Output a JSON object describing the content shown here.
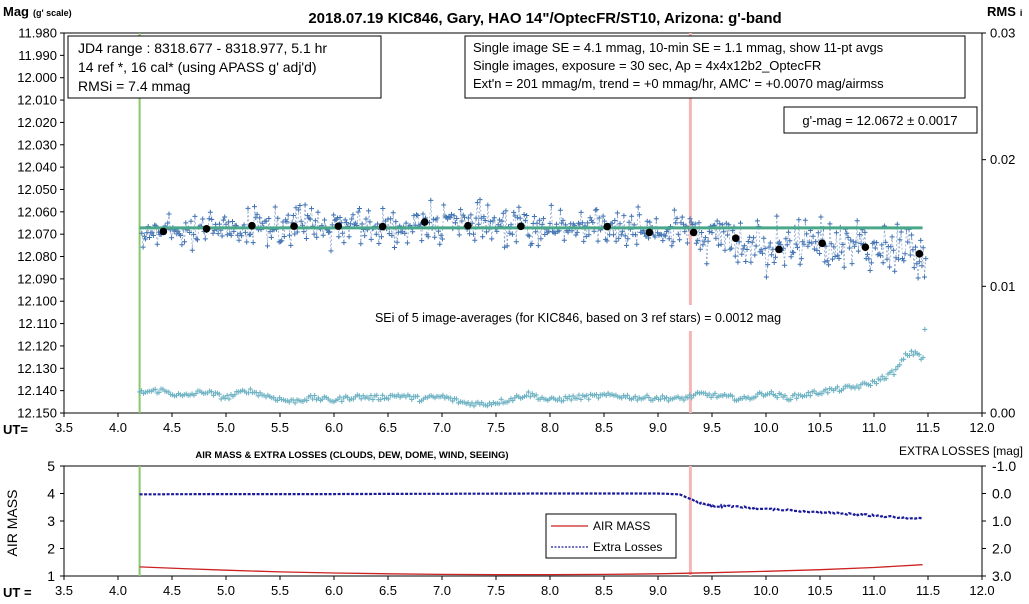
{
  "chart_data": [
    {
      "type": "scatter",
      "title": "2018.07.19  KIC846,  Gary, HAO 14\"/OptecFR/ST10,  Arizona:  g'-band",
      "ylabel_left_main": "Mag",
      "ylabel_left_sub": "(g' scale)",
      "ylabel_right_main": "RMS",
      "ylabel_right_sub": "i",
      "xlabel": "UT=",
      "ylim": [
        11.98,
        12.15
      ],
      "y_inverted": true,
      "xlim": [
        3.5,
        12.0
      ],
      "y2lim": [
        0.0,
        0.03
      ],
      "y_ticks": [
        "11.980",
        "11.990",
        "12.000",
        "12.010",
        "12.020",
        "12.030",
        "12.040",
        "12.050",
        "12.060",
        "12.070",
        "12.080",
        "12.090",
        "12.100",
        "12.110",
        "12.120",
        "12.130",
        "12.140",
        "12.150"
      ],
      "y2_ticks": [
        "0.00",
        "0.01",
        "0.02",
        "0.03"
      ],
      "x_ticks": [
        "3.5",
        "4.0",
        "4.5",
        "5.0",
        "5.5",
        "6.0",
        "6.5",
        "7.0",
        "7.5",
        "8.0",
        "8.5",
        "9.0",
        "9.5",
        "10.0",
        "10.5",
        "11.0",
        "11.5",
        "12.0"
      ],
      "info_left": [
        "JD4 range : 8318.677 - 8318.977,  5.1  hr",
        "14 ref *, 16 cal* (using APASS g' adj'd)",
        "RMSi = 7.4 mmag"
      ],
      "info_right": [
        "Single image SE = 4.1 mmag, 10-min SE = 1.1 mmag, show  11-pt avgs",
        "Single images, exposure = 30 sec, Ap = 4x4x12b2_OptecFR",
        "Ext'n = 201 mmag/m, trend =  +0 mmag/hr, AMC' = +0.0070 mag/airmss"
      ],
      "gmag_box": "g'-mag = 12.0672 ± 0.0017",
      "sei_note": "SEi of 5 image-averages (for KIC846, based on 3 ref stars) = 0.0012  mag",
      "fit_level": 12.0672,
      "green_marker_x": 4.2,
      "red_marker_x": 9.3,
      "avg_points": {
        "x": [
          4.42,
          4.82,
          5.24,
          5.63,
          6.04,
          6.45,
          6.84,
          7.24,
          7.73,
          8.53,
          8.92,
          9.33,
          9.72,
          10.12,
          10.52,
          10.92,
          11.42
        ],
        "y": [
          12.0688,
          12.0676,
          12.0662,
          12.0664,
          12.0664,
          12.0666,
          12.0646,
          12.0662,
          12.0665,
          12.0666,
          12.0692,
          12.0692,
          12.0718,
          12.0768,
          12.0741,
          12.0758,
          12.0788
        ]
      },
      "rms_trace": {
        "x": [
          4.2,
          4.4,
          4.6,
          4.8,
          5.0,
          5.2,
          5.4,
          5.6,
          5.8,
          6.0,
          6.2,
          6.4,
          6.6,
          6.8,
          7.0,
          7.2,
          7.4,
          7.6,
          7.8,
          8.0,
          8.2,
          8.4,
          8.6,
          8.8,
          9.0,
          9.2,
          9.4,
          9.6,
          9.8,
          10.0,
          10.2,
          10.4,
          10.6,
          10.8,
          11.0,
          11.2,
          11.3,
          11.4,
          11.45
        ],
        "y": [
          0.0016,
          0.0018,
          0.0013,
          0.0017,
          0.0012,
          0.0018,
          0.0013,
          0.0009,
          0.0012,
          0.001,
          0.0013,
          0.0012,
          0.0014,
          0.0011,
          0.0013,
          0.0008,
          0.0007,
          0.001,
          0.0015,
          0.001,
          0.0012,
          0.0013,
          0.0014,
          0.0012,
          0.0012,
          0.0011,
          0.0015,
          0.0013,
          0.0011,
          0.0016,
          0.0012,
          0.0015,
          0.0018,
          0.002,
          0.0024,
          0.0033,
          0.0046,
          0.0048,
          0.0042
        ]
      },
      "rms_outlier": {
        "x": 11.47,
        "y": 0.0066
      }
    },
    {
      "type": "line",
      "title": "AIR MASS & EXTRA LOSSES (CLOUDS, DEW, DOME, WIND, SEEING)",
      "ylabel": "AIR MASS",
      "y2label": "EXTRA LOSSES [mag]",
      "xlabel": "UT =",
      "ylim": [
        1,
        5
      ],
      "y2lim": [
        -1.0,
        3.0
      ],
      "y2_inverted": true,
      "xlim": [
        3.5,
        12.0
      ],
      "y_ticks": [
        "1",
        "2",
        "3",
        "4",
        "5"
      ],
      "y2_ticks": [
        "-1.0",
        "0.0",
        "1.0",
        "2.0",
        "3.0"
      ],
      "x_ticks": [
        "3.5",
        "4.0",
        "4.5",
        "5.0",
        "5.5",
        "6.0",
        "6.5",
        "7.0",
        "7.5",
        "8.0",
        "8.5",
        "9.0",
        "9.5",
        "10.0",
        "10.5",
        "11.0",
        "11.5",
        "12.0"
      ],
      "green_marker_x": 4.2,
      "red_marker_x": 9.3,
      "legend": [
        "AIR MASS",
        "Extra Losses"
      ],
      "legend_position": "lower-middle",
      "series": [
        {
          "name": "AIR MASS",
          "color": "#cc2222",
          "x": [
            4.2,
            4.6,
            5.0,
            5.5,
            6.0,
            6.5,
            7.0,
            7.5,
            8.0,
            8.5,
            9.0,
            9.5,
            10.0,
            10.5,
            11.0,
            11.45
          ],
          "y": [
            1.33,
            1.27,
            1.21,
            1.15,
            1.11,
            1.08,
            1.06,
            1.05,
            1.05,
            1.06,
            1.08,
            1.12,
            1.17,
            1.23,
            1.31,
            1.41
          ]
        },
        {
          "name": "Extra Losses",
          "color": "#1a1a9a",
          "x": [
            4.2,
            5.0,
            6.0,
            7.0,
            8.0,
            9.0,
            9.2,
            9.3,
            9.4,
            9.5,
            9.6,
            9.8,
            10.0,
            10.2,
            10.4,
            10.6,
            10.8,
            11.0,
            11.2,
            11.45
          ],
          "y": [
            0.03,
            0.02,
            0.02,
            0.01,
            0.0,
            0.0,
            0.03,
            0.2,
            0.35,
            0.47,
            0.46,
            0.5,
            0.56,
            0.6,
            0.66,
            0.7,
            0.75,
            0.8,
            0.86,
            0.92
          ]
        }
      ]
    }
  ]
}
